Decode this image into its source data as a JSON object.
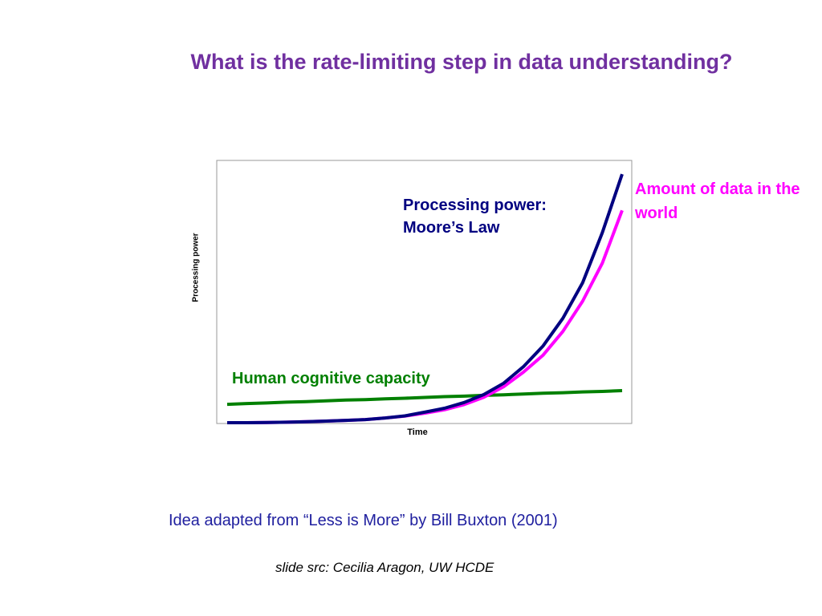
{
  "chart_data": {
    "type": "line",
    "title": "What is the rate-limiting step in data understanding?",
    "x_label": "Time",
    "y_label": "Processing power",
    "categories": [
      null,
      null,
      null,
      null,
      null,
      null,
      null,
      null,
      null,
      null,
      null,
      null,
      null,
      null,
      null,
      null,
      null,
      null,
      null,
      null,
      null
    ],
    "ylim": [
      0,
      100
    ],
    "series": [
      {
        "name": "Human cognitive capacity",
        "color": "#008000",
        "values": [
          7.3,
          7.6,
          7.8,
          8.1,
          8.3,
          8.6,
          8.9,
          9.1,
          9.4,
          9.6,
          9.9,
          10.2,
          10.4,
          10.7,
          10.9,
          11.2,
          11.5,
          11.7,
          12.0,
          12.2,
          12.5
        ]
      },
      {
        "name": "Amount of data in the world",
        "color": "#ff00ff",
        "values": [
          0.3,
          0.3,
          0.4,
          0.5,
          0.7,
          0.9,
          1.2,
          1.5,
          2.1,
          2.8,
          3.9,
          5.2,
          7.2,
          10.0,
          14.0,
          19.5,
          26.0,
          35.0,
          46.5,
          61,
          81
        ]
      },
      {
        "name": "Processing power: Moore’s Law",
        "color": "#000080",
        "values": [
          0.3,
          0.3,
          0.4,
          0.5,
          0.7,
          0.9,
          1.2,
          1.5,
          2.1,
          2.9,
          4.3,
          5.8,
          8.0,
          11.0,
          15.3,
          21.6,
          29.5,
          40,
          53.5,
          72.6,
          94.8
        ]
      }
    ],
    "caption": "Idea adapted from “Less is More” by Bill Buxton (2001)",
    "source": "slide src: Cecilia Aragon, UW HCDE"
  }
}
